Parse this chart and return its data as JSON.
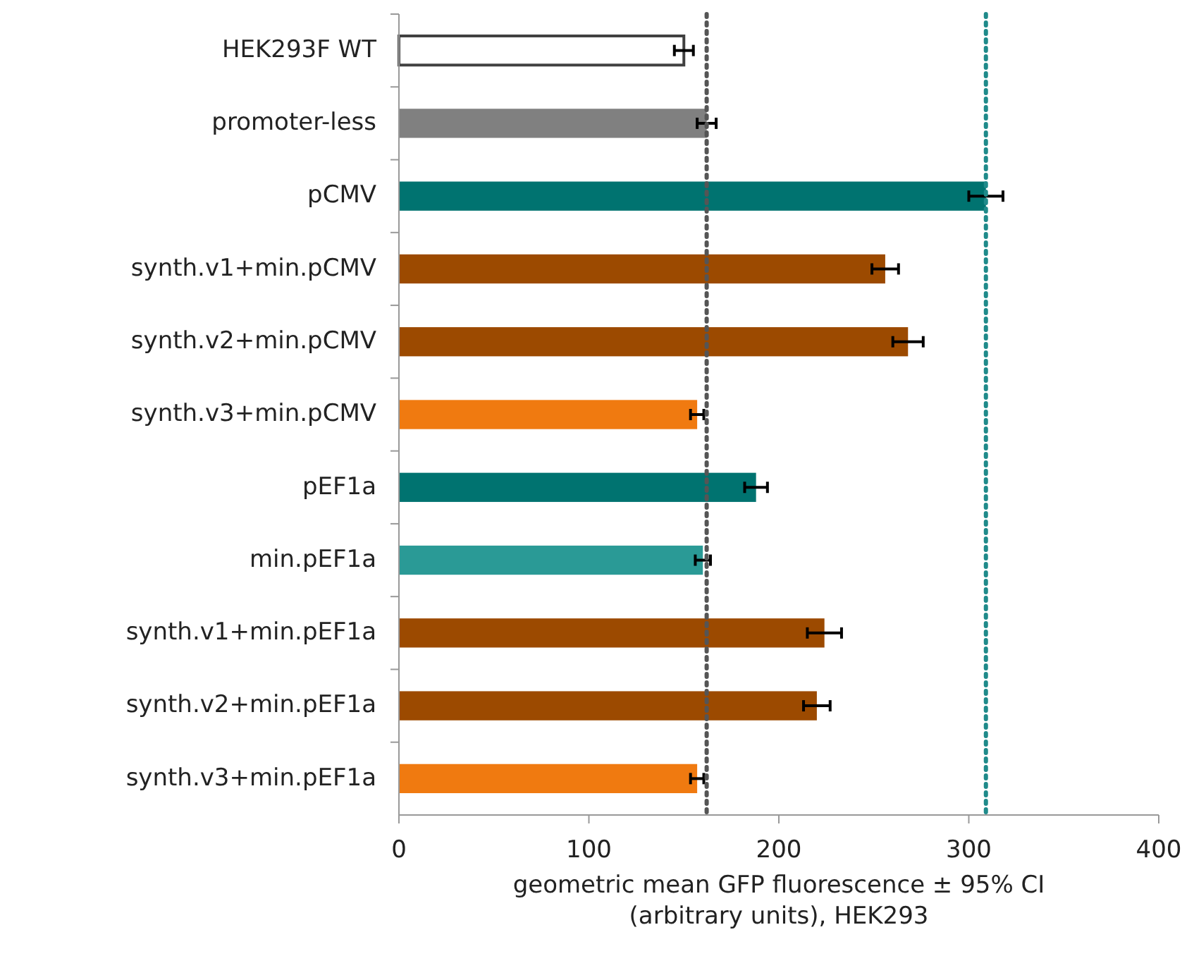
{
  "chart_data": {
    "type": "bar",
    "orientation": "horizontal",
    "xlabel": "geometric mean GFP fluorescence ± 95% CI\n(arbitrary units), HEK293",
    "categories": [
      "HEK293F WT",
      "promoter-less",
      "pCMV",
      "synth.v1+min.pCMV",
      "synth.v2+min.pCMV",
      "synth.v3+min.pCMV",
      "pEF1a",
      "min.pEF1a",
      "synth.v1+min.pEF1a",
      "synth.v2+min.pEF1a",
      "synth.v3+min.pEF1a"
    ],
    "values": [
      150,
      162,
      309,
      256,
      268,
      157,
      188,
      160,
      224,
      220,
      157
    ],
    "errors": [
      5,
      5,
      9,
      7,
      8,
      3.5,
      6,
      4,
      9,
      7,
      3.5
    ],
    "colors": [
      "#ffffff",
      "#808080",
      "#007370",
      "#9c4a00",
      "#9c4a00",
      "#f07a10",
      "#007370",
      "#2a9a96",
      "#9c4a00",
      "#9c4a00",
      "#f07a10"
    ],
    "xlim": [
      0,
      400
    ],
    "xticks": [
      0,
      100,
      200,
      300,
      400
    ],
    "grid": false,
    "ref_lines": [
      {
        "axis": "x",
        "value": 162,
        "color": "#555555",
        "line_style": "dotted"
      },
      {
        "axis": "x",
        "value": 309,
        "color": "#1f8a8a",
        "line_style": "dotted"
      }
    ]
  }
}
